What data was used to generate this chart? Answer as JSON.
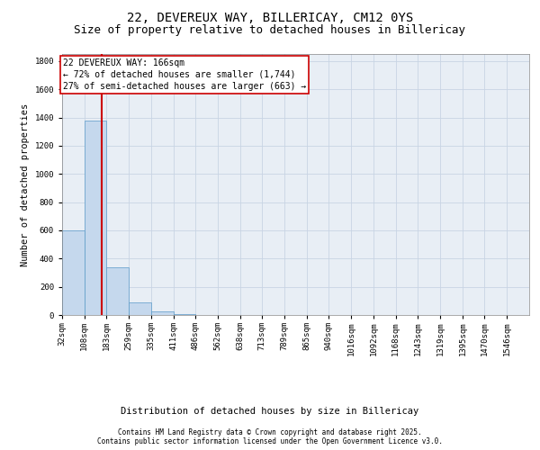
{
  "title_line1": "22, DEVEREUX WAY, BILLERICAY, CM12 0YS",
  "title_line2": "Size of property relative to detached houses in Billericay",
  "xlabel": "Distribution of detached houses by size in Billericay",
  "ylabel": "Number of detached properties",
  "bin_labels": [
    "32sqm",
    "108sqm",
    "183sqm",
    "259sqm",
    "335sqm",
    "411sqm",
    "486sqm",
    "562sqm",
    "638sqm",
    "713sqm",
    "789sqm",
    "865sqm",
    "940sqm",
    "1016sqm",
    "1092sqm",
    "1168sqm",
    "1243sqm",
    "1319sqm",
    "1395sqm",
    "1470sqm",
    "1546sqm"
  ],
  "bin_edges": [
    32,
    108,
    183,
    259,
    335,
    411,
    486,
    562,
    638,
    713,
    789,
    865,
    940,
    1016,
    1092,
    1168,
    1243,
    1319,
    1395,
    1470,
    1546,
    1622
  ],
  "bar_heights": [
    600,
    1380,
    340,
    90,
    25,
    5,
    2,
    1,
    0,
    0,
    0,
    0,
    0,
    0,
    0,
    0,
    0,
    0,
    0,
    0,
    0
  ],
  "bar_color": "#c5d8ed",
  "bar_edgecolor": "#5a9ac8",
  "marker_x": 166,
  "marker_color": "#cc0000",
  "annotation_line1": "22 DEVEREUX WAY: 166sqm",
  "annotation_line2": "← 72% of detached houses are smaller (1,744)",
  "annotation_line3": "27% of semi-detached houses are larger (663) →",
  "annotation_box_color": "#ffffff",
  "annotation_box_edgecolor": "#cc0000",
  "ylim": [
    0,
    1850
  ],
  "yticks": [
    0,
    200,
    400,
    600,
    800,
    1000,
    1200,
    1400,
    1600,
    1800
  ],
  "xlim_left": 32,
  "xlim_right": 1622,
  "background_color": "#ffffff",
  "plot_bg_color": "#e8eef5",
  "grid_color": "#c8d4e4",
  "footnote1": "Contains HM Land Registry data © Crown copyright and database right 2025.",
  "footnote2": "Contains public sector information licensed under the Open Government Licence v3.0.",
  "title_fontsize": 10,
  "subtitle_fontsize": 9,
  "axis_label_fontsize": 7.5,
  "tick_fontsize": 6.5,
  "annot_fontsize": 7,
  "footnote_fontsize": 5.5
}
